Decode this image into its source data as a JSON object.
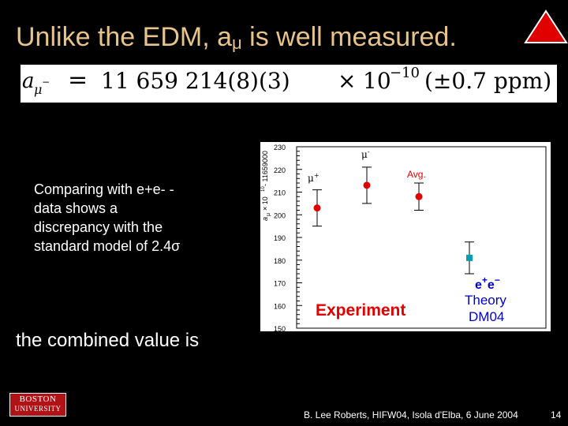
{
  "slide": {
    "title_before": "Unlike the EDM, a",
    "title_sub": "μ",
    "title_after": " is well measured.",
    "formula": {
      "lhs_symbol": "a",
      "lhs_sub": "μ",
      "lhs_sup": "−",
      "equals": "=",
      "value": "11 659 214(8)(3)",
      "times": "×",
      "base": "10",
      "exponent": "−10",
      "ppm": "(±0.7 ppm)"
    },
    "comparison_text": "Comparing with  e+e- - data shows a discrepancy with the standard model of 2.4σ",
    "combined_text": "the combined value is",
    "logo_line1": "BOSTON",
    "logo_line2": "UNIVERSITY",
    "footer": "B. Lee Roberts, HIFW04,  Isola d'Elba, 6 June 2004",
    "page_number": "14"
  },
  "chart_data": {
    "type": "scatter",
    "ylabel": "a   × 10   - 11659000",
    "ylabel_parts": {
      "a": "a",
      "sub": "μ",
      "times": "× 10",
      "sup": "10",
      "offset": "- 11659000"
    },
    "ylim": [
      150,
      230
    ],
    "yticks": [
      150,
      160,
      170,
      180,
      190,
      200,
      210,
      220,
      230
    ],
    "series": [
      {
        "name": "μ+",
        "label": "μ",
        "label_sup": "+",
        "y": 203,
        "err_low": 195,
        "err_high": 211,
        "marker": "circle",
        "color": "#e00000"
      },
      {
        "name": "μ-",
        "label": "μ",
        "label_sup": "-",
        "y": 213,
        "err_low": 205,
        "err_high": 221,
        "marker": "circle",
        "color": "#e00000"
      },
      {
        "name": "Avg.",
        "label": "Avg.",
        "y": 208,
        "err_low": 202,
        "err_high": 214,
        "marker": "circle",
        "color": "#e00000"
      },
      {
        "name": "e+e- Theory DM04",
        "label": "e+e−",
        "y": 181,
        "err_low": 174,
        "err_high": 188,
        "marker": "square",
        "color": "#00a0b0"
      }
    ],
    "annotations": {
      "experiment": "Experiment",
      "theory_line1": "e+e−",
      "theory_line2": "Theory",
      "theory_line3": "DM04"
    },
    "colors": {
      "experiment": "#e00000",
      "theory": "#0000cc",
      "theory_marker": "#00a0b0"
    }
  }
}
